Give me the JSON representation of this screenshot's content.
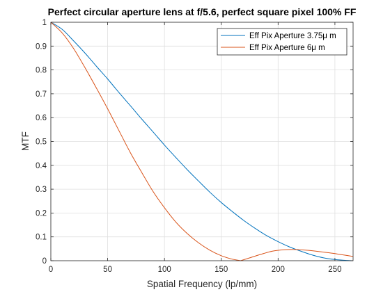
{
  "chart_data": {
    "type": "line",
    "title": "Perfect circular aperture lens at f/5.6, perfect square pixel 100% FF",
    "xlabel": "Spatial Frequency (lp/mm)",
    "ylabel": "MTF",
    "xlim": [
      0,
      266
    ],
    "ylim": [
      0,
      1
    ],
    "xticks": [
      0,
      50,
      100,
      150,
      200,
      250
    ],
    "yticks": [
      0,
      0.1,
      0.2,
      0.3,
      0.4,
      0.5,
      0.6,
      0.7,
      0.8,
      0.9,
      1
    ],
    "xtick_labels": [
      "0",
      "50",
      "100",
      "150",
      "200",
      "250"
    ],
    "ytick_labels": [
      "0",
      "0.1",
      "0.2",
      "0.3",
      "0.4",
      "0.5",
      "0.6",
      "0.7",
      "0.8",
      "0.9",
      "1"
    ],
    "grid": true,
    "legend_position": "top-right",
    "series": [
      {
        "name": "Eff Pix Aperture 3.75μ m",
        "color": "#0072bd",
        "x": [
          0,
          10,
          20,
          30,
          40,
          50,
          60,
          70,
          80,
          90,
          100,
          110,
          120,
          130,
          140,
          150,
          160,
          170,
          180,
          190,
          200,
          210,
          220,
          230,
          240,
          250,
          260,
          266
        ],
        "y": [
          1.0,
          0.97,
          0.922,
          0.871,
          0.816,
          0.762,
          0.705,
          0.65,
          0.594,
          0.54,
          0.485,
          0.433,
          0.382,
          0.334,
          0.287,
          0.244,
          0.205,
          0.168,
          0.135,
          0.105,
          0.08,
          0.058,
          0.04,
          0.024,
          0.012,
          0.005,
          0.001,
          0.0
        ]
      },
      {
        "name": "Eff Pix Aperture 6μ m",
        "color": "#d95319",
        "x": [
          0,
          10,
          20,
          30,
          40,
          50,
          60,
          70,
          80,
          90,
          100,
          110,
          120,
          130,
          140,
          150,
          160,
          167,
          175,
          185,
          195,
          205,
          215,
          225,
          235,
          245,
          255,
          266
        ],
        "y": [
          1.0,
          0.955,
          0.89,
          0.81,
          0.725,
          0.637,
          0.545,
          0.453,
          0.37,
          0.29,
          0.222,
          0.162,
          0.114,
          0.075,
          0.044,
          0.021,
          0.006,
          0.0,
          0.012,
          0.027,
          0.04,
          0.046,
          0.047,
          0.044,
          0.039,
          0.033,
          0.026,
          0.018
        ]
      }
    ]
  }
}
